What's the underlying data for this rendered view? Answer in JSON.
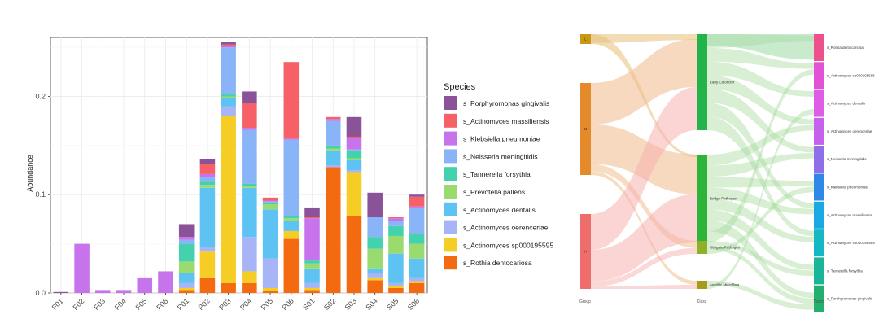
{
  "chart_data": [
    {
      "type": "bar",
      "stacked": true,
      "xlabel": "",
      "ylabel": "Abundance",
      "ylim": [
        0,
        0.26
      ],
      "yticks": [
        0.0,
        0.1,
        0.2
      ],
      "ytick_labels": [
        "0.0",
        "0.1",
        "0.2"
      ],
      "grid": true,
      "legend_title": "Species",
      "legend_position": "right",
      "categories": [
        "F01",
        "F02",
        "F03",
        "F04",
        "F05",
        "F06",
        "P01",
        "P02",
        "P03",
        "P04",
        "P05",
        "P06",
        "S01",
        "S02",
        "S03",
        "S04",
        "S05",
        "S06"
      ],
      "series": [
        {
          "name": "s_Rothia dentocariosa",
          "color": "#f46a10",
          "values": [
            0,
            0,
            0,
            0,
            0,
            0,
            0.003,
            0.015,
            0.01,
            0.01,
            0.002,
            0.055,
            0.003,
            0.128,
            0.078,
            0.013,
            0.005,
            0.01
          ]
        },
        {
          "name": "s_Actinomyces sp000195595",
          "color": "#f5cd25",
          "values": [
            0,
            0,
            0,
            0,
            0,
            0,
            0.002,
            0.027,
            0.17,
            0.012,
            0.003,
            0.008,
            0.002,
            0.0,
            0.045,
            0.002,
            0.002,
            0.002
          ]
        },
        {
          "name": "s_Actinomyces oerenceriae",
          "color": "#a7b5f6",
          "values": [
            0,
            0,
            0,
            0,
            0,
            0,
            0.005,
            0.005,
            0.01,
            0.035,
            0.03,
            0.0,
            0.005,
            0.002,
            0.002,
            0.005,
            0.003,
            0.003
          ]
        },
        {
          "name": "s_Actinomyces dentalis",
          "color": "#5ec3f2",
          "values": [
            0,
            0,
            0,
            0,
            0,
            0,
            0.01,
            0.06,
            0.008,
            0.05,
            0.05,
            0.01,
            0.015,
            0.015,
            0.01,
            0.005,
            0.03,
            0.02
          ]
        },
        {
          "name": "s_Prevotella pallens",
          "color": "#99db6e",
          "values": [
            0,
            0,
            0,
            0,
            0,
            0,
            0.012,
            0.003,
            0.002,
            0.002,
            0.005,
            0.003,
            0.005,
            0.002,
            0.002,
            0.02,
            0.018,
            0.015
          ]
        },
        {
          "name": "s_Tannerella forsythia",
          "color": "#44d1ad",
          "values": [
            0,
            0,
            0,
            0,
            0,
            0,
            0.018,
            0.003,
            0.002,
            0.002,
            0.002,
            0.002,
            0.003,
            0.003,
            0.008,
            0.012,
            0.01,
            0.01
          ]
        },
        {
          "name": "s_Neisseria meningitidis",
          "color": "#8ab4f8",
          "values": [
            0,
            0,
            0,
            0,
            0,
            0,
            0.004,
            0.005,
            0.048,
            0.055,
            0.001,
            0.078,
            0.0,
            0.025,
            0.001,
            0.02,
            0.005,
            0.027
          ]
        },
        {
          "name": "s_Klebsiella pneumoniae",
          "color": "#c673ec",
          "values": [
            0,
            0.05,
            0.003,
            0.003,
            0.015,
            0.022,
            0.003,
            0.003,
            0.001,
            0.002,
            0.001,
            0.001,
            0.043,
            0.002,
            0.012,
            0.0,
            0.003,
            0.001
          ]
        },
        {
          "name": "s_Actinomyces massiliensis",
          "color": "#f56166",
          "values": [
            0,
            0,
            0,
            0,
            0,
            0,
            0.0,
            0.01,
            0.002,
            0.025,
            0.003,
            0.078,
            0.001,
            0.002,
            0.001,
            0.0,
            0.001,
            0.01
          ]
        },
        {
          "name": "s_Porphyromonas gingivalis",
          "color": "#8a5397",
          "values": [
            0.001,
            0,
            0,
            0,
            0,
            0,
            0.013,
            0.005,
            0.002,
            0.012,
            0.0,
            0.0,
            0.01,
            0.0,
            0.02,
            0.025,
            0.0,
            0.002
          ]
        }
      ],
      "legend_order": [
        "s_Porphyromonas gingivalis",
        "s_Actinomyces massiliensis",
        "s_Klebsiella pneumoniae",
        "s_Neisseria meningitidis",
        "s_Tannerella forsythia",
        "s_Prevotella pallens",
        "s_Actinomyces dentalis",
        "s_Actinomyces oerenceriae",
        "s_Actinomyces sp000195595",
        "s_Rothia dentocariosa"
      ]
    },
    {
      "type": "sankey",
      "column_labels": [
        "Group",
        "Class",
        "Taxon"
      ],
      "group_nodes": [
        {
          "label": "L",
          "color": "#c99812",
          "value": 3
        },
        {
          "label": "M",
          "color": "#e48a2a",
          "value": 30
        },
        {
          "label": "H",
          "color": "#f06d6d",
          "value": 25
        }
      ],
      "class_nodes": [
        {
          "label": "Early Colonizer",
          "color": "#22b34b",
          "value": 31
        },
        {
          "label": "Bridge Pathogen",
          "color": "#2fb43a",
          "value": 30
        },
        {
          "label": "Obligate Pathogen",
          "color": "#8fb12a",
          "value": 4
        },
        {
          "label": "Aerobic Microflora",
          "color": "#a89a1c",
          "value": 2
        }
      ],
      "taxon_nodes": [
        {
          "label": "s_Rothia dentocariosa",
          "color": "#ef4f8c"
        },
        {
          "label": "s_Actinomyces sp000195595",
          "color": "#e351d6"
        },
        {
          "label": "s_Actinomyces dentalis",
          "color": "#dd5de6"
        },
        {
          "label": "s_Actinomyces oerenceriae",
          "color": "#c561ea"
        },
        {
          "label": "s_Neisseria meningitidis",
          "color": "#8e6fe7"
        },
        {
          "label": "s_Klebsiella pneumoniae",
          "color": "#2f88e8"
        },
        {
          "label": "s_Actinomyces massiliensis",
          "color": "#19a8e1"
        },
        {
          "label": "s_Actinomyces sp000195595",
          "color": "#14b8c4"
        },
        {
          "label": "s_Tannerella forsythia",
          "color": "#18b59a"
        },
        {
          "label": "s_Porphyromonas gingivalis",
          "color": "#22b06e"
        }
      ]
    }
  ]
}
